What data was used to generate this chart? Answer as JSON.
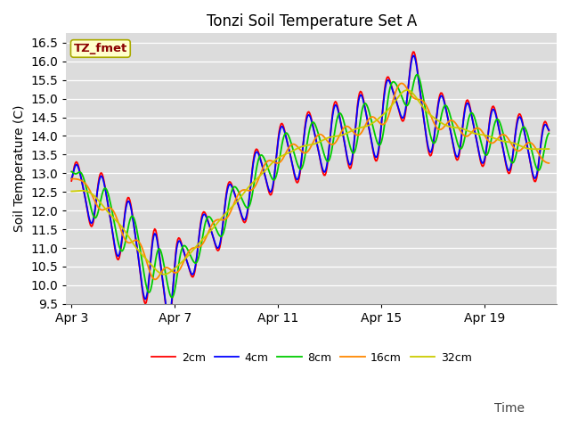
{
  "title": "Tonzi Soil Temperature Set A",
  "xlabel": "Time",
  "ylabel": "Soil Temperature (C)",
  "ylim": [
    9.5,
    16.75
  ],
  "legend_labels": [
    "2cm",
    "4cm",
    "8cm",
    "16cm",
    "32cm"
  ],
  "legend_colors": [
    "#ff0000",
    "#0000ff",
    "#00cc00",
    "#ff8800",
    "#cccc00"
  ],
  "annotation_text": "TZ_fmet",
  "annotation_color": "#8b0000",
  "annotation_bg": "#ffffcc",
  "plot_bg_color": "#dcdcdc",
  "title_fontsize": 12,
  "axis_fontsize": 10,
  "legend_fontsize": 9,
  "xtick_labels": [
    "Apr 3",
    "Apr 7",
    "Apr 11",
    "Apr 15",
    "Apr 19"
  ],
  "grid_color": "#ffffff"
}
